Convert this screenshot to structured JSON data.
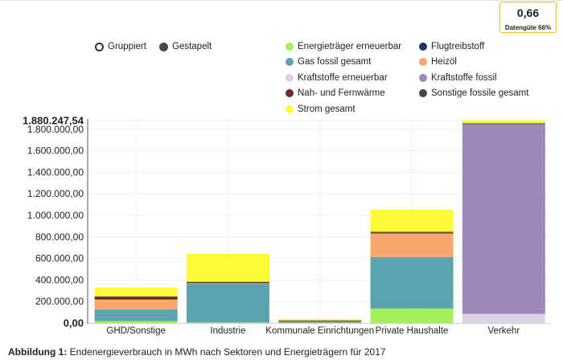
{
  "quality_box": {
    "value": "0,66",
    "label": "Datengüte 66%"
  },
  "view_toggle": {
    "options": [
      {
        "label": "Gruppiert",
        "selected": false
      },
      {
        "label": "Gestapelt",
        "selected": true
      }
    ]
  },
  "caption": {
    "prefix": "Abbildung 1:",
    "text": "Endenergieverbrauch in MWh nach Sektoren und Energieträgern für 2017"
  },
  "chart_data": {
    "type": "bar",
    "stacked": true,
    "categories": [
      "GHD/Sonstige",
      "Industrie",
      "Kommunale Einrichtungen",
      "Private Haushalte",
      "Verkehr"
    ],
    "series": [
      {
        "name": "Energieträger erneuerbar",
        "color": "#a5ef5b",
        "values": [
          18000,
          5000,
          2000,
          135000,
          0
        ]
      },
      {
        "name": "Flugtreibstoff",
        "color": "#1e3560",
        "values": [
          0,
          0,
          0,
          0,
          0
        ]
      },
      {
        "name": "Gas fossil gesamt",
        "color": "#5ba3ae",
        "values": [
          108000,
          360000,
          14000,
          478000,
          0
        ]
      },
      {
        "name": "Heizöl",
        "color": "#f8a86e",
        "values": [
          92000,
          5000,
          4000,
          218000,
          0
        ]
      },
      {
        "name": "Kraftstoffe erneuerbar",
        "color": "#dcd3e6",
        "values": [
          0,
          0,
          0,
          0,
          85000
        ]
      },
      {
        "name": "Kraftstoffe fossil",
        "color": "#9f86bb",
        "values": [
          0,
          0,
          0,
          0,
          1762000
        ]
      },
      {
        "name": "Nah- und Fernwärme",
        "color": "#6a2c24",
        "values": [
          22000,
          8000,
          3000,
          10000,
          0
        ]
      },
      {
        "name": "Sonstige fossile gesamt",
        "color": "#454545",
        "values": [
          8000,
          5000,
          1000,
          6000,
          8000
        ]
      },
      {
        "name": "Strom gesamt",
        "color": "#fbfb38",
        "values": [
          80000,
          260000,
          14000,
          205000,
          25247.54
        ]
      }
    ],
    "ylim": [
      0,
      1880247.54
    ],
    "y_ticks": [
      {
        "value": 0,
        "label": "0,00"
      },
      {
        "value": 200000,
        "label": "200.000,00"
      },
      {
        "value": 400000,
        "label": "400.000,00"
      },
      {
        "value": 600000,
        "label": "600.000,00"
      },
      {
        "value": 800000,
        "label": "800.000,00"
      },
      {
        "value": 1000000,
        "label": "1.000.000,00"
      },
      {
        "value": 1200000,
        "label": "1.200.000,00"
      },
      {
        "value": 1400000,
        "label": "1.400.000,00"
      },
      {
        "value": 1600000,
        "label": "1.600.000,00"
      },
      {
        "value": 1800000,
        "label": "1.800.000,00"
      },
      {
        "value": 1880247.54,
        "label": "1.880.247,54"
      }
    ],
    "grid": true,
    "legend": "top"
  }
}
